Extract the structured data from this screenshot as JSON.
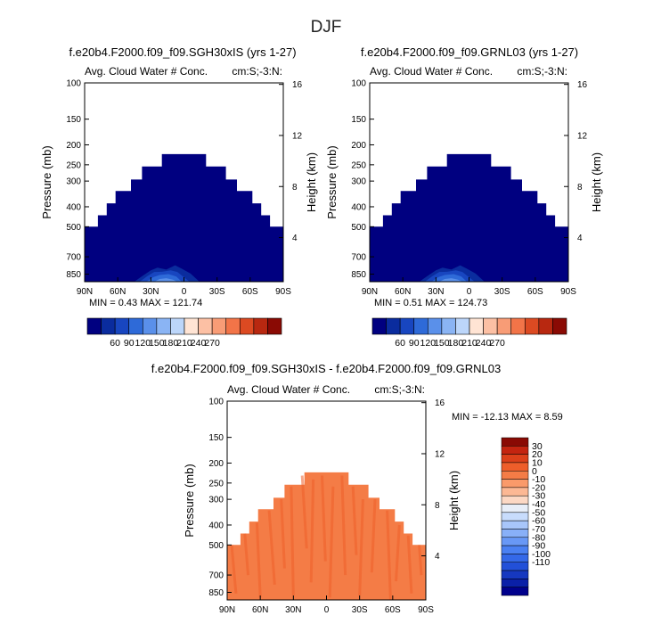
{
  "figure": {
    "season_title": "DJF"
  },
  "palettes": {
    "abs": [
      "#000080",
      "#0a2c9e",
      "#1846c0",
      "#2e6ad8",
      "#5a90ea",
      "#8ab4f4",
      "#bcd6fa",
      "#ffe4d4",
      "#fcc0a4",
      "#f89c76",
      "#f27448",
      "#dc4a22",
      "#b82810",
      "#8a0a04"
    ],
    "diff": [
      "#00008c",
      "#0a20a8",
      "#1638c0",
      "#2250d8",
      "#3468e8",
      "#4a80f2",
      "#6898f6",
      "#88b0f8",
      "#a8c6fa",
      "#c8dcfc",
      "#e8eef8",
      "#fcd8c4",
      "#fcb894",
      "#fa9a6a",
      "#f47c46",
      "#ee5e2a",
      "#dc401a",
      "#c42410",
      "#8a0a04"
    ],
    "diff_fill": "#f47c46",
    "diff_fill_dark": "#ee5e2a"
  },
  "chart_data": [
    {
      "id": "panel-left",
      "type": "contour",
      "title": "f.e20b4.F2000.f09_f09.SGH30xIS (yrs 1-27)",
      "subtitle": "Avg. Cloud Water # Conc.",
      "units_label": "cm:S;-3:N:",
      "xlabel": "",
      "ylabel": "Pressure (mb)",
      "ylabel_right": "Height (km)",
      "xticks": [
        "90N",
        "60N",
        "30N",
        "0",
        "30S",
        "60S",
        "90S"
      ],
      "xtick_values": [
        90,
        60,
        30,
        0,
        -30,
        -60,
        -90
      ],
      "xlim": [
        90,
        -90
      ],
      "yticks": [
        100,
        150,
        200,
        250,
        300,
        400,
        500,
        700,
        850
      ],
      "ylim": [
        100,
        925
      ],
      "yticks_right": [
        16,
        12,
        8,
        4
      ],
      "min_text": "MIN =    0.43   MAX = 121.74",
      "colorbar_labels": [
        "60",
        "90",
        "120",
        "150",
        "180",
        "210",
        "240",
        "270"
      ],
      "cloud_top_profile": {
        "lat": [
          90,
          78,
          78,
          70,
          70,
          62,
          62,
          48,
          48,
          38,
          38,
          20,
          20,
          -20,
          -20,
          -38,
          -38,
          -48,
          -48,
          -62,
          -62,
          -70,
          -70,
          -78,
          -78,
          -90
        ],
        "pressure_top": [
          500,
          500,
          440,
          440,
          385,
          385,
          335,
          335,
          295,
          295,
          255,
          255,
          222,
          222,
          255,
          255,
          295,
          295,
          335,
          335,
          385,
          385,
          440,
          440,
          500,
          500
        ]
      }
    },
    {
      "id": "panel-right",
      "type": "contour",
      "title": "f.e20b4.F2000.f09_f09.GRNL03 (yrs 1-27)",
      "subtitle": "Avg. Cloud Water # Conc.",
      "units_label": "cm:S;-3:N:",
      "xlabel": "",
      "ylabel": "Pressure (mb)",
      "ylabel_right": "Height (km)",
      "xticks": [
        "90N",
        "60N",
        "30N",
        "0",
        "30S",
        "60S",
        "90S"
      ],
      "xtick_values": [
        90,
        60,
        30,
        0,
        -30,
        -60,
        -90
      ],
      "xlim": [
        90,
        -90
      ],
      "yticks": [
        100,
        150,
        200,
        250,
        300,
        400,
        500,
        700,
        850
      ],
      "ylim": [
        100,
        925
      ],
      "yticks_right": [
        16,
        12,
        8,
        4
      ],
      "min_text": "MIN =    0.51   MAX = 124.73",
      "colorbar_labels": [
        "60",
        "90",
        "120",
        "150",
        "180",
        "210",
        "240",
        "270"
      ],
      "cloud_top_profile": {
        "lat": [
          90,
          78,
          78,
          70,
          70,
          62,
          62,
          48,
          48,
          38,
          38,
          20,
          20,
          -20,
          -20,
          -38,
          -38,
          -48,
          -48,
          -62,
          -62,
          -70,
          -70,
          -78,
          -78,
          -90
        ],
        "pressure_top": [
          500,
          500,
          440,
          440,
          385,
          385,
          335,
          335,
          295,
          295,
          255,
          255,
          222,
          222,
          255,
          255,
          295,
          295,
          335,
          335,
          385,
          385,
          440,
          440,
          500,
          500
        ]
      }
    },
    {
      "id": "panel-diff",
      "type": "contour",
      "title": "f.e20b4.F2000.f09_f09.SGH30xIS - f.e20b4.F2000.f09_f09.GRNL03",
      "subtitle": "Avg. Cloud Water # Conc.",
      "units_label": "cm:S;-3:N:",
      "xlabel": "",
      "ylabel": "Pressure (mb)",
      "ylabel_right": "Height (km)",
      "xticks": [
        "90N",
        "60N",
        "30N",
        "0",
        "30S",
        "60S",
        "90S"
      ],
      "xtick_values": [
        90,
        60,
        30,
        0,
        -30,
        -60,
        -90
      ],
      "xlim": [
        90,
        -90
      ],
      "yticks": [
        100,
        150,
        200,
        250,
        300,
        400,
        500,
        700,
        850
      ],
      "ylim": [
        100,
        925
      ],
      "yticks_right": [
        16,
        12,
        8,
        4
      ],
      "min_text": "MIN = -12.13   MAX =   8.59",
      "colorbar_labels": [
        "30",
        "20",
        "10",
        "0",
        "-10",
        "-20",
        "-30",
        "-40",
        "-50",
        "-60",
        "-70",
        "-80",
        "-90",
        "-100",
        "-110"
      ],
      "cloud_top_profile": {
        "lat": [
          90,
          78,
          78,
          70,
          70,
          62,
          62,
          48,
          48,
          38,
          38,
          20,
          20,
          -20,
          -20,
          -38,
          -38,
          -48,
          -48,
          -62,
          -62,
          -70,
          -70,
          -78,
          -78,
          -90
        ],
        "pressure_top": [
          500,
          500,
          440,
          440,
          385,
          385,
          335,
          335,
          295,
          295,
          255,
          255,
          222,
          222,
          255,
          255,
          295,
          295,
          335,
          335,
          385,
          385,
          440,
          440,
          500,
          500
        ]
      }
    }
  ]
}
